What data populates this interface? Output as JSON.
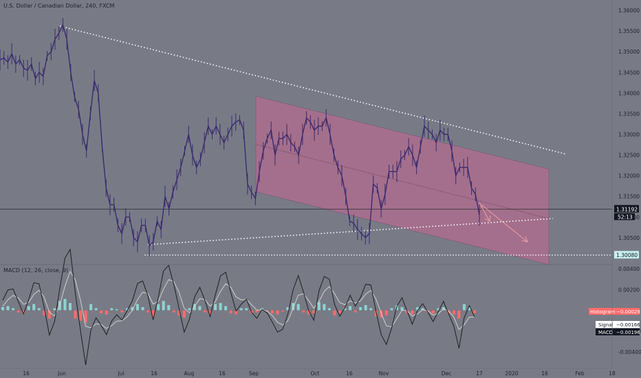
{
  "header": {
    "symbol_title": "U.S. Dollar / Canadian Dollar, 240, FXCM",
    "macd_title": "MACD (12, 26, close, 9)"
  },
  "colors": {
    "background": "#787b86",
    "candle": "#3a2a6e",
    "channel_fill": "#b36b8e",
    "trendline": "#ffffff",
    "arrow": "#f0a0a0",
    "histogram_positive": "#8fd3cf",
    "histogram_negative": "#ff6b6b",
    "macd_line": "#1e1e1e",
    "signal_line": "#d0d0d0"
  },
  "chart_data": [
    {
      "type": "line",
      "title": "U.S. Dollar / Canadian Dollar, 240, FXCM",
      "y_axis_ticks": [
        "1.36000",
        "1.35500",
        "1.35000",
        "1.34500",
        "1.34000",
        "1.33500",
        "1.33000",
        "1.32500",
        "1.32000",
        "1.31500",
        "1.31000",
        "1.30500"
      ],
      "ylim": [
        1.2985,
        1.3625
      ],
      "x_axis_ticks": [
        "16",
        "Jun",
        "Jul",
        "16",
        "Aug",
        "16",
        "Sep",
        "Oct",
        "16",
        "Nov",
        "Dec",
        "17",
        "2020",
        "16",
        "Feb",
        "18"
      ],
      "series": [
        {
          "values": [
            1.348,
            1.3485,
            1.3475,
            1.3495,
            1.347,
            1.348,
            1.346,
            1.3455,
            1.347,
            1.3435,
            1.345,
            1.344,
            1.349,
            1.35,
            1.353,
            1.3545,
            1.3565,
            1.353,
            1.345,
            1.339,
            1.336,
            1.33,
            1.326,
            1.335,
            1.343,
            1.34,
            1.327,
            1.317,
            1.313,
            1.313,
            1.308,
            1.306,
            1.31,
            1.31,
            1.305,
            1.304,
            1.308,
            1.308,
            1.303,
            1.304,
            1.309,
            1.307,
            1.315,
            1.312,
            1.316,
            1.319,
            1.322,
            1.326,
            1.33,
            1.325,
            1.322,
            1.324,
            1.328,
            1.332,
            1.33,
            1.332,
            1.33,
            1.328,
            1.33,
            1.332,
            1.333,
            1.3335,
            1.331,
            1.318,
            1.316,
            1.3145,
            1.321,
            1.326,
            1.329,
            1.331,
            1.325,
            1.329,
            1.329,
            1.33,
            1.328,
            1.327,
            1.325,
            1.33,
            1.334,
            1.333,
            1.331,
            1.332,
            1.332,
            1.334,
            1.33,
            1.325,
            1.322,
            1.32,
            1.315,
            1.309,
            1.3085,
            1.307,
            1.306,
            1.305,
            1.306,
            1.318,
            1.317,
            1.312,
            1.3155,
            1.321,
            1.321,
            1.321,
            1.324,
            1.325,
            1.327,
            1.325,
            1.322,
            1.327,
            1.332,
            1.331,
            1.33,
            1.328,
            1.331,
            1.33,
            1.33,
            1.326,
            1.32,
            1.322,
            1.322,
            1.322,
            1.317,
            1.3155,
            1.3105
          ],
          "x_start": "2019-05-11",
          "x_step_hours": 24
        }
      ],
      "price_labels": [
        "1.31192",
        "52:13",
        "1.30080"
      ],
      "indicators": {
        "horizontal_line": 1.3008,
        "current_price": 1.31192
      }
    },
    {
      "type": "bar",
      "title": "MACD (12, 26, close, 9)",
      "y_axis_ticks": [
        "0.00400",
        "0.00200",
        "0.00000",
        "-0.00200",
        "-0.00400"
      ],
      "ylim": [
        -0.0052,
        0.0044
      ],
      "legend_labels": {
        "histogram": "Histogram",
        "histogram_value": "−0.00029",
        "signal": "Signal",
        "signal_value": "−0.00166",
        "macd": "MACD",
        "macd_value": "−0.00196"
      },
      "series": [
        {
          "name": "Histogram",
          "values": [
            0.0003,
            0.0004,
            0.0002,
            -0.0002,
            -0.0003,
            0.0004,
            0.0006,
            0.0002,
            -0.0005,
            -0.0008,
            0.0002,
            0.0009,
            0.0011,
            0.0007,
            -0.0008,
            -0.001,
            -0.0012,
            0.0006,
            0.0002,
            -0.0003,
            -0.0004,
            0.0002,
            0.0001,
            -0.0002,
            0.0002,
            0.0003,
            0.0006,
            0.0003,
            -0.0002,
            -0.0006,
            0.0006,
            0.0009,
            0.0005,
            -0.0002,
            -0.0005,
            -0.0007,
            0.0002,
            0.0006,
            0.0004,
            -0.0002,
            -0.0004,
            0.0006,
            0.0007,
            0.0004,
            -0.0003,
            -0.0004,
            0.0002,
            0.0002,
            -0.0003,
            -0.0002,
            0.0002,
            -0.0001,
            -0.0003,
            -0.0004,
            -0.0001,
            0.0003,
            0.0007,
            0.0006,
            -0.0002,
            -0.0004,
            -0.0003,
            0.0008,
            0.0006,
            0.0002,
            -0.0005,
            -0.0003,
            0.0002,
            0.0004,
            -0.0002,
            0.0003,
            0.0005,
            0.0002,
            -0.0006,
            -0.0007,
            -0.0005,
            0.0002,
            0.0005,
            0.0003,
            -0.0003,
            -0.0004,
            0.0003,
            0.0002,
            -0.0002,
            -0.0003,
            0.0002,
            0.0003,
            -0.0003,
            -0.0004,
            -0.0008,
            0.0006,
            0.0003,
            -0.0003
          ]
        }
      ]
    }
  ]
}
